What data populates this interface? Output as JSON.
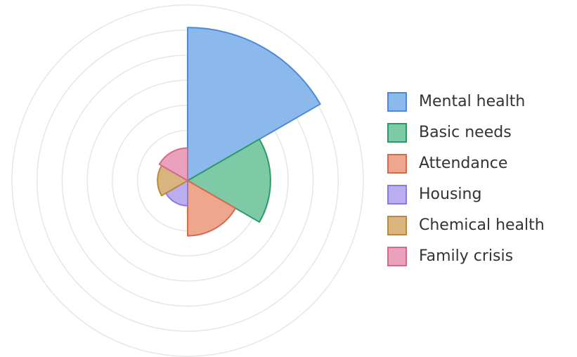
{
  "chart_data": {
    "type": "polarArea",
    "categories": [
      "Mental health",
      "Basic needs",
      "Attendance",
      "Housing",
      "Chemical health",
      "Family crisis"
    ],
    "values": [
      6.1,
      3.3,
      2.2,
      1.0,
      1.2,
      1.3
    ],
    "colors": [
      "#8cb9ec",
      "#7ec9a6",
      "#eea68c",
      "#bbaef0",
      "#d9b47e",
      "#eaa2bc"
    ],
    "stroke_colors": [
      "#4a8ad8",
      "#2c9a68",
      "#d86a4c",
      "#8a7ae0",
      "#b88a3a",
      "#d46890"
    ],
    "rlim": [
      0,
      7
    ],
    "rticks": [
      1,
      2,
      3,
      4,
      5,
      6,
      7
    ],
    "grid": true,
    "legend": "right"
  }
}
